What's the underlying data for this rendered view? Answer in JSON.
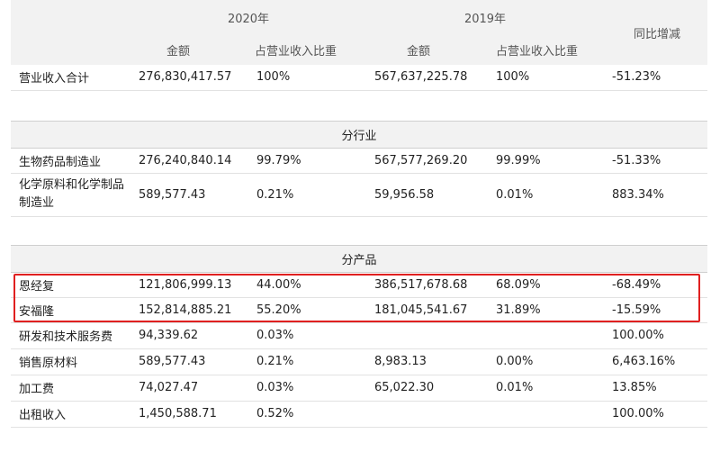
{
  "header": {
    "year_2020": "2020年",
    "year_2019": "2019年",
    "yoy": "同比增减",
    "amount": "金额",
    "share": "占营业收入比重"
  },
  "total": {
    "label": "营业收入合计",
    "a2020": "276,830,417.57",
    "s2020": "100%",
    "a2019": "567,637,225.78",
    "s2019": "100%",
    "yoy": "-51.23%"
  },
  "by_industry": {
    "title": "分行业",
    "rows": [
      {
        "label": "生物药品制造业",
        "a2020": "276,240,840.14",
        "s2020": "99.79%",
        "a2019": "567,577,269.20",
        "s2019": "99.99%",
        "yoy": "-51.33%"
      },
      {
        "label": "化学原料和化学制品制造业",
        "a2020": "589,577.43",
        "s2020": "0.21%",
        "a2019": "59,956.58",
        "s2019": "0.01%",
        "yoy": "883.34%"
      }
    ]
  },
  "by_product": {
    "title": "分产品",
    "rows": [
      {
        "label": "恩经复",
        "a2020": "121,806,999.13",
        "s2020": "44.00%",
        "a2019": "386,517,678.68",
        "s2019": "68.09%",
        "yoy": "-68.49%"
      },
      {
        "label": "安福隆",
        "a2020": "152,814,885.21",
        "s2020": "55.20%",
        "a2019": "181,045,541.67",
        "s2019": "31.89%",
        "yoy": "-15.59%"
      },
      {
        "label": "研发和技术服务费",
        "a2020": "94,339.62",
        "s2020": "0.03%",
        "a2019": "",
        "s2019": "",
        "yoy": "100.00%"
      },
      {
        "label": "销售原材料",
        "a2020": "589,577.43",
        "s2020": "0.21%",
        "a2019": "8,983.13",
        "s2019": "0.00%",
        "yoy": "6,463.16%"
      },
      {
        "label": "加工费",
        "a2020": "74,027.47",
        "s2020": "0.03%",
        "a2019": "65,022.30",
        "s2019": "0.01%",
        "yoy": "13.85%"
      },
      {
        "label": "出租收入",
        "a2020": "1,450,588.71",
        "s2020": "0.52%",
        "a2019": "",
        "s2019": "",
        "yoy": "100.00%"
      }
    ]
  },
  "colors": {
    "highlight": "#e02020",
    "section_bg": "#f2f2f2"
  }
}
